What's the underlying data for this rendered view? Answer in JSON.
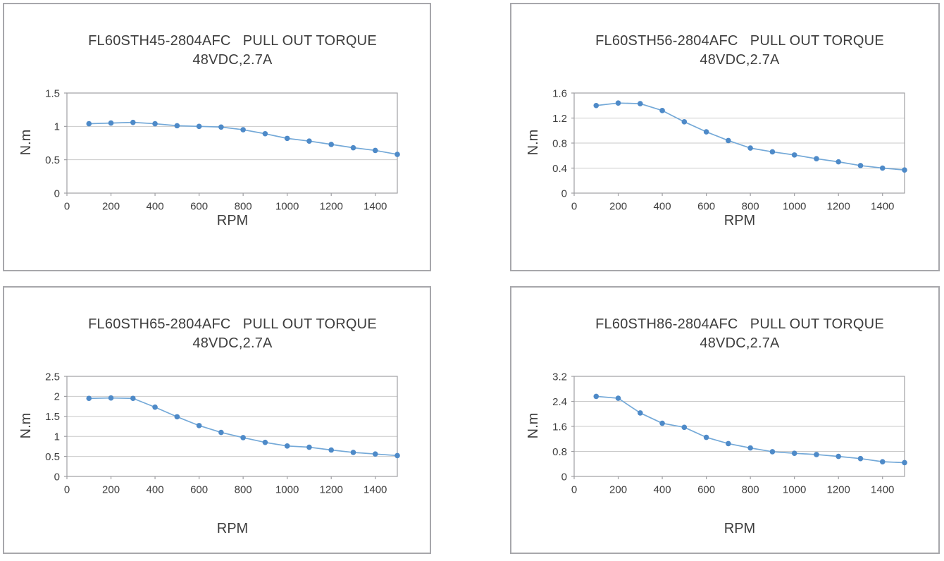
{
  "page": {
    "background": "#ffffff"
  },
  "colors": {
    "line": "#74a9d8",
    "marker": "#4e8ac8",
    "grid": "#c9c9c9",
    "frame": "#9f9fa3",
    "panel_border": "#a7a7ab",
    "text": "#3d3d3d"
  },
  "chart_data": [
    {
      "type": "line",
      "title": "FL60STH45-2804AFC   PULL OUT TORQUE",
      "subtitle": "48VDC,2.7A",
      "xlabel": "RPM",
      "ylabel": "N.m",
      "x": [
        100,
        200,
        300,
        400,
        500,
        600,
        700,
        800,
        900,
        1000,
        1100,
        1200,
        1300,
        1400,
        1500
      ],
      "values": [
        1.04,
        1.05,
        1.06,
        1.04,
        1.01,
        1.0,
        0.99,
        0.95,
        0.89,
        0.82,
        0.78,
        0.73,
        0.68,
        0.64,
        0.58
      ],
      "xlim": [
        0,
        1500
      ],
      "ylim": [
        0,
        1.5
      ],
      "xticks": [
        0,
        200,
        400,
        600,
        800,
        1000,
        1200,
        1400
      ],
      "yticks": [
        0,
        0.5,
        1,
        1.5
      ],
      "ytick_labels": [
        "0",
        "0.5",
        "1",
        "1.5"
      ],
      "grid": true,
      "legend": "none",
      "marker": "circle"
    },
    {
      "type": "line",
      "title": "FL60STH56-2804AFC   PULL OUT TORQUE",
      "subtitle": "48VDC,2.7A",
      "xlabel": "RPM",
      "ylabel": "N.m",
      "x": [
        100,
        200,
        300,
        400,
        500,
        600,
        700,
        800,
        900,
        1000,
        1100,
        1200,
        1300,
        1400,
        1500
      ],
      "values": [
        1.4,
        1.44,
        1.43,
        1.32,
        1.14,
        0.98,
        0.84,
        0.72,
        0.66,
        0.61,
        0.55,
        0.5,
        0.44,
        0.4,
        0.37
      ],
      "xlim": [
        0,
        1500
      ],
      "ylim": [
        0,
        1.6
      ],
      "xticks": [
        0,
        200,
        400,
        600,
        800,
        1000,
        1200,
        1400
      ],
      "yticks": [
        0,
        0.4,
        0.8,
        1.2,
        1.6
      ],
      "ytick_labels": [
        "0",
        "0.4",
        "0.8",
        "1.2",
        "1.6"
      ],
      "grid": true,
      "legend": "none",
      "marker": "circle"
    },
    {
      "type": "line",
      "title": "FL60STH65-2804AFC   PULL OUT TORQUE",
      "subtitle": "48VDC,2.7A",
      "xlabel": "RPM",
      "ylabel": "N.m",
      "x": [
        100,
        200,
        300,
        400,
        500,
        600,
        700,
        800,
        900,
        1000,
        1100,
        1200,
        1300,
        1400,
        1500
      ],
      "values": [
        1.95,
        1.96,
        1.95,
        1.73,
        1.49,
        1.27,
        1.1,
        0.97,
        0.85,
        0.76,
        0.73,
        0.66,
        0.6,
        0.56,
        0.52
      ],
      "xlim": [
        0,
        1500
      ],
      "ylim": [
        0,
        2.5
      ],
      "xticks": [
        0,
        200,
        400,
        600,
        800,
        1000,
        1200,
        1400
      ],
      "yticks": [
        0,
        0.5,
        1,
        1.5,
        2,
        2.5
      ],
      "ytick_labels": [
        "0",
        "0.5",
        "1",
        "1.5",
        "2",
        "2.5"
      ],
      "grid": true,
      "legend": "none",
      "marker": "circle"
    },
    {
      "type": "line",
      "title": "FL60STH86-2804AFC   PULL OUT TORQUE",
      "subtitle": "48VDC,2.7A",
      "xlabel": "RPM",
      "ylabel": "N.m",
      "x": [
        100,
        200,
        300,
        400,
        500,
        600,
        700,
        800,
        900,
        1000,
        1100,
        1200,
        1300,
        1400,
        1500
      ],
      "values": [
        2.56,
        2.5,
        2.03,
        1.7,
        1.57,
        1.25,
        1.05,
        0.91,
        0.79,
        0.74,
        0.7,
        0.64,
        0.57,
        0.47,
        0.44
      ],
      "xlim": [
        0,
        1500
      ],
      "ylim": [
        0,
        3.2
      ],
      "xticks": [
        0,
        200,
        400,
        600,
        800,
        1000,
        1200,
        1400
      ],
      "yticks": [
        0,
        0.8,
        1.6,
        2.4,
        3.2
      ],
      "ytick_labels": [
        "0",
        "0.8",
        "1.6",
        "2.4",
        "3.2"
      ],
      "grid": true,
      "legend": "none",
      "marker": "circle"
    }
  ]
}
